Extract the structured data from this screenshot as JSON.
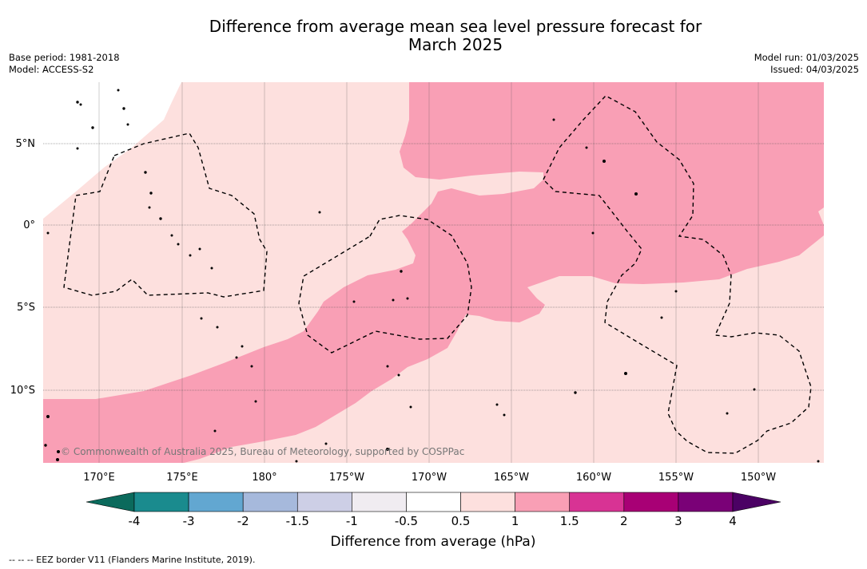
{
  "title": {
    "line1": "Difference from average mean sea level pressure forecast for",
    "line2": "March 2025"
  },
  "meta": {
    "base_period": "Base period: 1981-2018",
    "model": "Model: ACCESS-S2",
    "model_run": "Model run: 01/03/2025",
    "issued": "Issued: 04/03/2025"
  },
  "map": {
    "lat_labels": [
      "5°N",
      "0°",
      "5°S",
      "10°S"
    ],
    "lon_labels": [
      "170°E",
      "175°E",
      "180°",
      "175°W",
      "170°W",
      "165°W",
      "160°W",
      "155°W",
      "150°W"
    ],
    "copyright": "© Commonwealth of Australia 2025, Bureau of Meteorology, supported by COSPPac",
    "regions": [
      {
        "name": "0.5 to 1 hPa",
        "color": "#fde0de"
      },
      {
        "name": "1 to 1.5 hPa",
        "color": "#f99fb5"
      }
    ],
    "eez_border_color": "#000000"
  },
  "colorbar": {
    "label": "Difference from average (hPa)",
    "ticks": [
      "-4",
      "-3",
      "-2",
      "-1.5",
      "-1",
      "-0.5",
      "0.5",
      "1",
      "1.5",
      "2",
      "3",
      "4"
    ],
    "colors": [
      "#1a8b8e",
      "#62a7d1",
      "#a6b9dc",
      "#cdcfe6",
      "#f0ecf1",
      "#ffffff",
      "#fde0de",
      "#f99fb5",
      "#d83394",
      "#a80075",
      "#7a0177"
    ],
    "under_color": "#0b6a5c",
    "over_color": "#4b0164"
  },
  "footnote": "--  --  -- EEZ border V11 (Flanders Marine Institute, 2019)."
}
